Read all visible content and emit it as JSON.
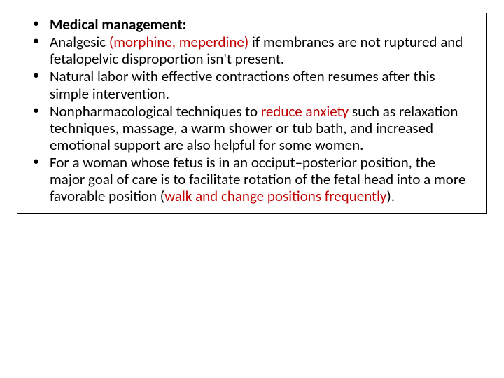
{
  "colors": {
    "text": "#000000",
    "highlight": "#c00000",
    "border": "#000000",
    "background": "#ffffff"
  },
  "typography": {
    "font_family": "Calibri, Arial, sans-serif",
    "font_size_pt": 16,
    "line_height": 1.15
  },
  "bullets": {
    "b1_bold": "Medical management:",
    "b2_pre": "Analgesic ",
    "b2_red": "(morphine, meperdine)",
    "b2_post": " if membranes are not ruptured and fetalopelvic disproportion isn't present.",
    "b3": "Natural labor with effective contractions often resumes after this simple intervention.",
    "b4_pre": "Nonpharmacological techniques to ",
    "b4_red": "reduce anxiety",
    "b4_post": " such as relaxation techniques, massage, a warm shower or tub bath, and increased emotional support are also helpful for some women.",
    "b5_pre": "For a woman whose fetus is in an occiput–posterior position, the major goal of care is to facilitate rotation of the fetal head into a more favorable position (",
    "b5_red": "walk and change positions frequently",
    "b5_post": ")."
  }
}
